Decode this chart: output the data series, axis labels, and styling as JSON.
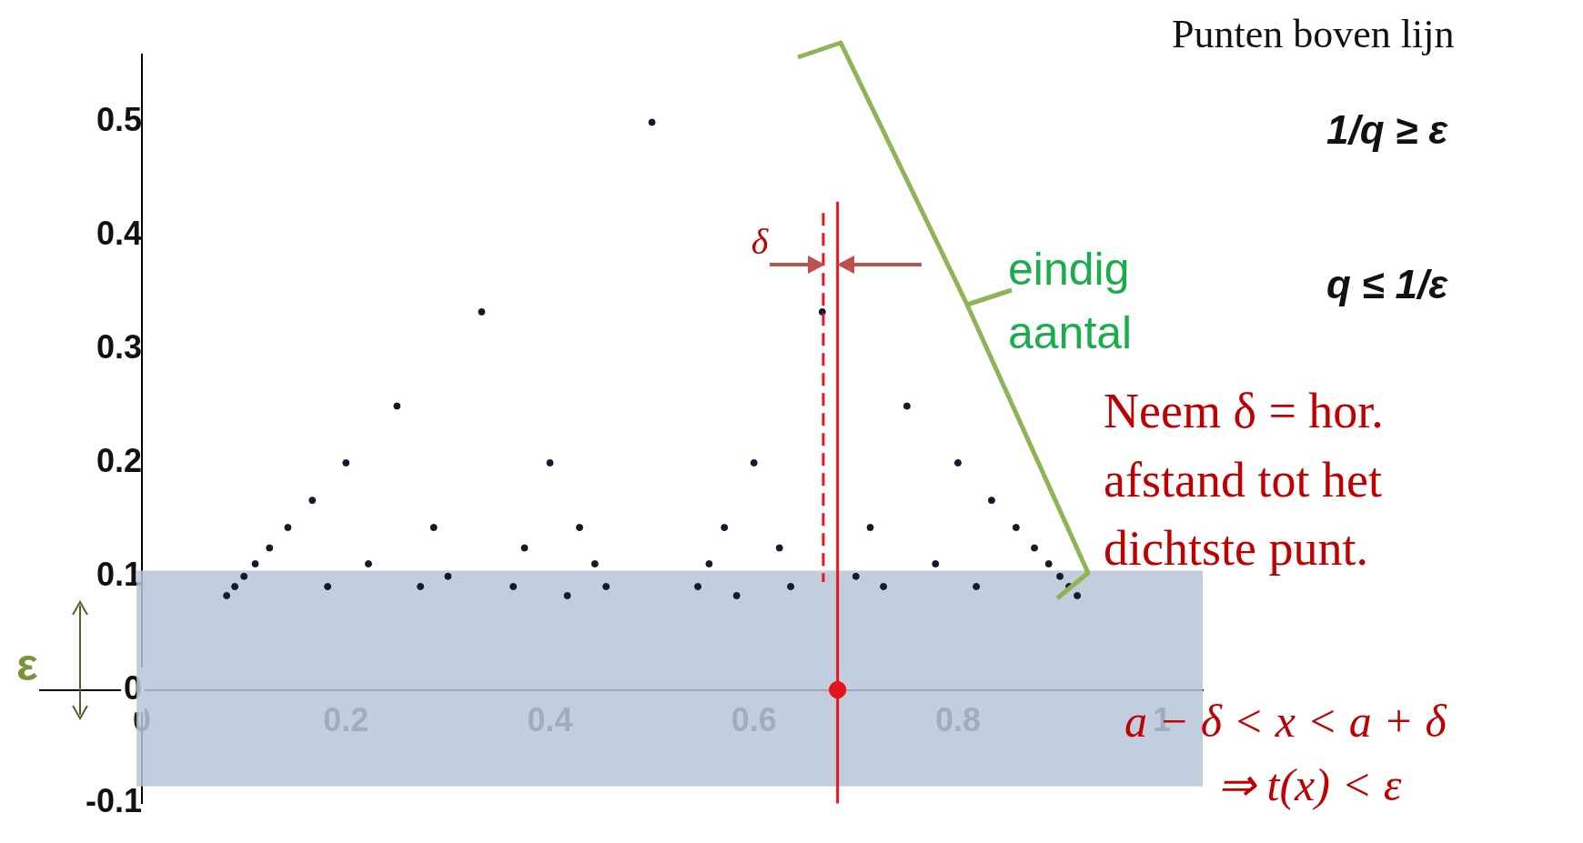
{
  "chart_data": {
    "type": "scatter",
    "xlim": [
      -0.1,
      1.04
    ],
    "ylim": [
      -0.1,
      0.56
    ],
    "xticks": [
      0,
      0.2,
      0.4,
      0.6,
      0.8,
      1
    ],
    "yticks": [
      -0.1,
      0,
      0.1,
      0.2,
      0.3,
      0.4,
      0.5
    ],
    "grid": false,
    "legend": false,
    "marker": "circle",
    "series": [
      {
        "color": "#111b2a",
        "x": [
          0.5,
          0.333,
          0.667,
          0.25,
          0.75,
          0.2,
          0.4,
          0.6,
          0.8,
          0.167,
          0.833,
          0.143,
          0.286,
          0.429,
          0.571,
          0.714,
          0.857,
          0.125,
          0.375,
          0.625,
          0.875,
          0.111,
          0.222,
          0.444,
          0.556,
          0.778,
          0.889,
          0.1,
          0.3,
          0.7,
          0.9,
          0.091,
          0.182,
          0.273,
          0.364,
          0.455,
          0.545,
          0.636,
          0.727,
          0.818,
          0.909,
          0.083,
          0.417,
          0.583,
          0.917
        ],
        "values": [
          0.5,
          0.333,
          0.333,
          0.25,
          0.25,
          0.2,
          0.2,
          0.2,
          0.2,
          0.167,
          0.167,
          0.143,
          0.143,
          0.143,
          0.143,
          0.143,
          0.143,
          0.125,
          0.125,
          0.125,
          0.125,
          0.111,
          0.111,
          0.111,
          0.111,
          0.111,
          0.111,
          0.1,
          0.1,
          0.1,
          0.1,
          0.091,
          0.091,
          0.091,
          0.091,
          0.091,
          0.091,
          0.091,
          0.091,
          0.091,
          0.091,
          0.083,
          0.083,
          0.083,
          0.083
        ]
      },
      {
        "color": "#e8141b",
        "x": [
          0.682
        ],
        "values": [
          0
        ]
      }
    ],
    "ref_lines": [
      {
        "axis": "x",
        "value": 0.682,
        "color": "#e8141b",
        "line_style": "solid"
      },
      {
        "axis": "x",
        "value": 0.668,
        "color": "#e8141b",
        "line_style": "dashed"
      }
    ],
    "bands": [
      {
        "axis": "y",
        "from": -0.085,
        "to": 0.105,
        "color": "#b7c6d8"
      }
    ],
    "annotations": [
      "Punten boven lijn",
      "1/q ≥ ε",
      "q ≤ 1/ε",
      "eindig aantal",
      "Neem δ = hor. afstand tot het dichtste punt.",
      "a − δ < x < a + δ",
      "⇒ t(x) < ε",
      {
        "text": "δ",
        "x": 0.668,
        "y": 0.36
      },
      "ε"
    ]
  }
}
